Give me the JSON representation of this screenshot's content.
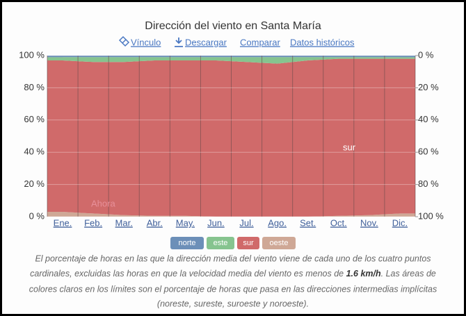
{
  "chart_data": {
    "type": "stacked_area",
    "title": "Dirección del viento en Santa María",
    "links": [
      "Vínculo",
      "Descargar",
      "Comparar",
      "Datos históricos"
    ],
    "categories": [
      "Ene.",
      "Feb.",
      "Mar.",
      "Abr.",
      "May.",
      "Jun.",
      "Jul.",
      "Ago.",
      "Set.",
      "Oct.",
      "Nov.",
      "Dic."
    ],
    "series": [
      {
        "name": "norte",
        "color": "#6c8fb8",
        "values": [
          1,
          1,
          1,
          1,
          1,
          1,
          1,
          1,
          1,
          1,
          1,
          1
        ]
      },
      {
        "name": "este",
        "color": "#86c48f",
        "values": [
          2,
          3,
          3,
          2,
          2,
          2,
          3,
          4,
          2,
          1,
          1,
          1
        ]
      },
      {
        "name": "sur",
        "color": "#d06a6a",
        "values": [
          94,
          94,
          95,
          96.5,
          96.5,
          97,
          96,
          95,
          97,
          97.5,
          97,
          96
        ]
      },
      {
        "name": "oeste",
        "color": "#cfa896",
        "values": [
          3,
          2,
          1,
          0.5,
          0.5,
          0,
          0,
          0,
          0,
          0.5,
          1,
          2
        ]
      }
    ],
    "ylim": [
      0,
      100
    ],
    "yticks": [
      {
        "value": 0,
        "label": "0 %"
      },
      {
        "value": 20,
        "label": "20 %"
      },
      {
        "value": 40,
        "label": "40 %"
      },
      {
        "value": 60,
        "label": "60 %"
      },
      {
        "value": 80,
        "label": "80 %"
      },
      {
        "value": 100,
        "label": "100 %"
      }
    ],
    "y2lim": [
      100,
      0
    ],
    "y2ticks": [
      {
        "value": 0,
        "label": "0 %"
      },
      {
        "value": 20,
        "label": "20 %"
      },
      {
        "value": 40,
        "label": "40 %"
      },
      {
        "value": 60,
        "label": "60 %"
      },
      {
        "value": 80,
        "label": "80 %"
      },
      {
        "value": 100,
        "label": "100 %"
      }
    ],
    "grid": true,
    "annotations": [
      "Ahora",
      "sur"
    ],
    "caption": [
      "El porcentaje de horas en las que la dirección media del viento viene de cada uno de los cuatro puntos",
      "cardinales, excluidas las horas en que la velocidad media del viento es menos de",
      "1.6 km/h",
      ". Las áreas de",
      "colores claros en los límites son el porcentaje de horas que pasa en las direcciones intermedias implícitas",
      "(noreste, sureste, suroeste y noroeste)."
    ]
  }
}
